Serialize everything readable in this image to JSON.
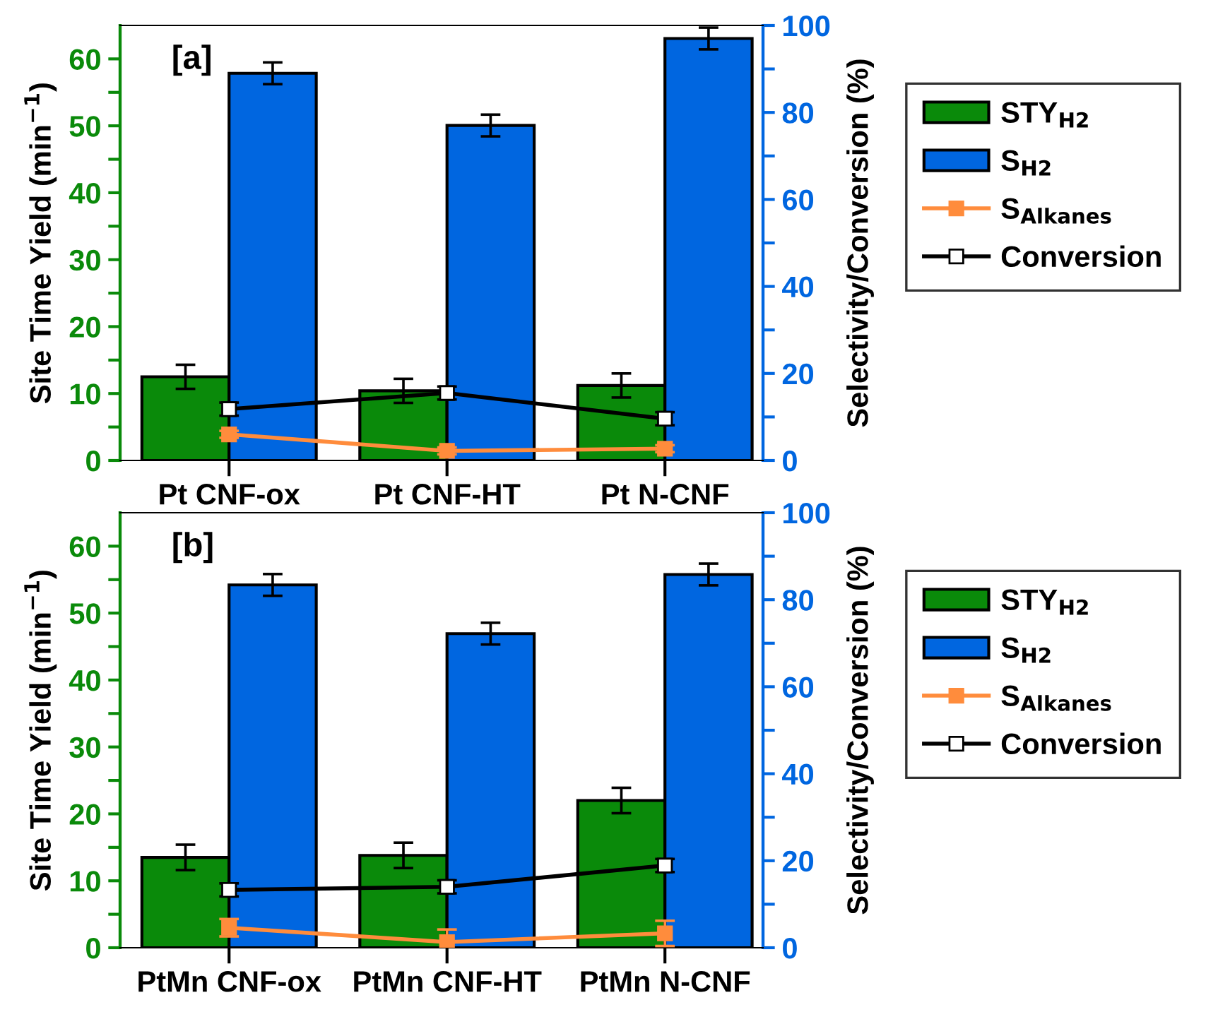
{
  "chart_data": [
    {
      "type": "bar",
      "categories": [
        "Pt CNF-ox",
        "Pt CNF-HT",
        "Pt N-CNF"
      ],
      "ylabel": "Site Time Yield (min$^{−1}$)",
      "y2label": "Selectivity/Conversion (%)",
      "annotations": [
        "[a]"
      ],
      "ylim": [
        0,
        65
      ],
      "yticks": [
        0,
        {
          "value": 5,
          "label": null
        },
        10,
        {
          "value": 15,
          "label": null
        },
        20,
        {
          "value": 25,
          "label": null
        },
        30,
        {
          "value": 35,
          "label": null
        },
        40,
        {
          "value": 45,
          "label": null
        },
        50,
        {
          "value": 55,
          "label": null
        },
        60
      ],
      "y2lim": [
        0,
        100
      ],
      "y2ticks": [
        0,
        {
          "value": 10,
          "label": null
        },
        20,
        {
          "value": 30,
          "label": null
        },
        40,
        {
          "value": 50,
          "label": null
        },
        60,
        {
          "value": 70,
          "label": null
        },
        80,
        {
          "value": 90,
          "label": null
        },
        100
      ],
      "legend": "right",
      "grid": false,
      "series": [
        {
          "name": "STY$_{H2}$",
          "color": "#0a8a0a",
          "values": [
            12.5,
            10.4,
            11.2
          ],
          "errors": [
            1.8,
            1.8,
            1.8
          ]
        },
        {
          "name": "S$_{H2}$",
          "axis": "y2",
          "color": "#0066e0",
          "values": [
            89,
            77,
            97
          ],
          "errors": [
            2.5,
            2.5,
            2.5
          ]
        },
        {
          "name": "S$_{Alkanes}$",
          "type": "line",
          "axis": "y2",
          "color": "#ff8c3c",
          "marker": "square",
          "values": [
            6.0,
            2.2,
            2.7
          ],
          "errors": [
            0.8,
            0.8,
            0.8
          ]
        },
        {
          "name": "Conversion",
          "type": "line",
          "axis": "y2",
          "color": "#000000",
          "marker": "square",
          "values": [
            11.8,
            15.5,
            9.6
          ],
          "errors": [
            1.5,
            1.5,
            1.5
          ]
        }
      ]
    },
    {
      "type": "bar",
      "categories": [
        "PtMn CNF-ox",
        "PtMn CNF-HT",
        "PtMn N-CNF"
      ],
      "ylabel": "Site Time Yield (min$^{−1}$)",
      "y2label": "Selectivity/Conversion (%)",
      "annotations": [
        "[b]"
      ],
      "ylim": [
        0,
        65
      ],
      "yticks": [
        0,
        {
          "value": 5,
          "label": null
        },
        10,
        {
          "value": 15,
          "label": null
        },
        20,
        {
          "value": 25,
          "label": null
        },
        30,
        {
          "value": 35,
          "label": null
        },
        40,
        {
          "value": 45,
          "label": null
        },
        50,
        {
          "value": 55,
          "label": null
        },
        60
      ],
      "y2lim": [
        0,
        100
      ],
      "y2ticks": [
        0,
        {
          "value": 10,
          "label": null
        },
        20,
        {
          "value": 30,
          "label": null
        },
        40,
        {
          "value": 50,
          "label": null
        },
        60,
        {
          "value": 70,
          "label": null
        },
        80,
        {
          "value": 90,
          "label": null
        },
        100
      ],
      "legend": "right",
      "grid": false,
      "series": [
        {
          "name": "STY$_{H2}$",
          "color": "#0a8a0a",
          "values": [
            13.5,
            13.8,
            22.0
          ],
          "errors": [
            1.9,
            1.9,
            1.9
          ]
        },
        {
          "name": "S$_{H2}$",
          "axis": "y2",
          "color": "#0066e0",
          "values": [
            83.4,
            72.2,
            85.8
          ],
          "errors": [
            2.5,
            2.5,
            2.5
          ]
        },
        {
          "name": "S$_{Alkanes}$",
          "type": "line",
          "axis": "y2",
          "color": "#ff8c3c",
          "marker": "square",
          "values": [
            4.6,
            1.3,
            3.3
          ],
          "errors": [
            2.0,
            2.9,
            2.9
          ]
        },
        {
          "name": "Conversion",
          "type": "line",
          "axis": "y2",
          "color": "#000000",
          "marker": "square",
          "values": [
            13.3,
            14.0,
            18.9
          ],
          "errors": [
            1.5,
            1.5,
            1.5
          ]
        }
      ]
    }
  ]
}
